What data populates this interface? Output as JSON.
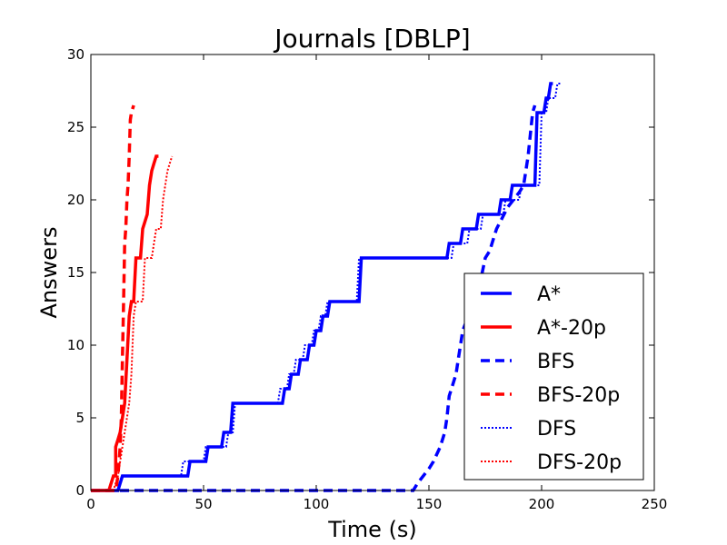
{
  "chart_data": {
    "type": "line",
    "title": "Journals [DBLP]",
    "xlabel": "Time (s)",
    "ylabel": "Answers",
    "xlim": [
      0,
      250
    ],
    "ylim": [
      0,
      30
    ],
    "xticks": [
      0,
      50,
      100,
      150,
      200,
      250
    ],
    "yticks": [
      0,
      5,
      10,
      15,
      20,
      25,
      30
    ],
    "xtick_labels": [
      "0",
      "50",
      "100",
      "150",
      "200",
      "250"
    ],
    "ytick_labels": [
      "0",
      "5",
      "10",
      "15",
      "20",
      "25",
      "30"
    ],
    "grid": false,
    "legend_position": "lower-right",
    "series": [
      {
        "name": "A*",
        "color": "#0000ff",
        "style": "solid",
        "x": [
          0,
          10,
          12,
          14,
          43,
          44,
          51,
          52,
          58,
          59,
          62,
          63,
          85,
          86,
          88,
          89,
          92,
          93,
          96,
          97,
          99,
          100,
          102,
          103,
          105,
          106,
          108,
          109,
          119,
          120,
          158,
          159,
          164,
          165,
          171,
          172,
          181,
          182,
          186,
          187,
          197,
          198,
          201,
          202,
          203,
          204,
          205
        ],
        "y": [
          0,
          0,
          0,
          1,
          1,
          2,
          2,
          3,
          3,
          4,
          4,
          6,
          6,
          7,
          7,
          8,
          8,
          9,
          9,
          10,
          10,
          11,
          11,
          12,
          12,
          13,
          13,
          13,
          13,
          16,
          16,
          17,
          17,
          18,
          18,
          19,
          19,
          20,
          20,
          21,
          21,
          26,
          26,
          27,
          27,
          28,
          28
        ]
      },
      {
        "name": "A*-20p",
        "color": "#ff0000",
        "style": "solid",
        "x": [
          0,
          8,
          9,
          10,
          11,
          11,
          12,
          13,
          14,
          15,
          16,
          17,
          18,
          19,
          20,
          21,
          22,
          23,
          24,
          25,
          26,
          27,
          28,
          29,
          30
        ],
        "y": [
          0,
          0,
          0.5,
          1,
          1,
          3,
          3.5,
          4,
          5,
          6,
          9,
          12,
          13,
          13,
          16,
          16,
          16,
          18,
          18.5,
          19,
          21,
          22,
          22.5,
          23,
          23
        ]
      },
      {
        "name": "BFS",
        "color": "#0000ff",
        "style": "dashed",
        "x": [
          0,
          143,
          145,
          150,
          152,
          155,
          157,
          158,
          159,
          160,
          162,
          163,
          165,
          170,
          173,
          175,
          177,
          178,
          180,
          185,
          190,
          192,
          194,
          196,
          197
        ],
        "y": [
          0,
          0,
          0.5,
          1.5,
          2,
          3,
          4,
          5,
          6.5,
          7,
          8,
          9,
          11,
          13,
          14.5,
          16,
          16.5,
          17,
          18,
          19.5,
          20.5,
          21,
          23,
          26,
          26.5
        ]
      },
      {
        "name": "BFS-20p",
        "color": "#ff0000",
        "style": "dashed",
        "x": [
          0,
          11,
          12,
          13,
          13.5,
          14,
          14.5,
          15,
          15.5,
          16,
          16.5,
          17,
          17.5,
          18,
          19
        ],
        "y": [
          0,
          0,
          1,
          3,
          5,
          9,
          13,
          17,
          18,
          20,
          21,
          23,
          25.5,
          26,
          26.5
        ]
      },
      {
        "name": "DFS",
        "color": "#0000ff",
        "style": "dotted",
        "x": [
          0,
          12,
          14,
          40,
          41,
          50,
          51,
          55,
          56,
          60,
          61,
          63,
          64,
          83,
          84,
          87,
          88,
          90,
          91,
          94,
          95,
          98,
          99,
          101,
          102,
          104,
          105,
          107,
          108,
          118,
          119,
          160,
          161,
          167,
          168,
          173,
          174,
          183,
          184,
          190,
          191,
          199,
          200,
          202,
          203,
          206,
          207,
          208,
          209
        ],
        "y": [
          0,
          0,
          1,
          1,
          2,
          2,
          3,
          3,
          3,
          3,
          4,
          4,
          6,
          6,
          7,
          7,
          8,
          8,
          9,
          9,
          10,
          10,
          11,
          11,
          12,
          12,
          13,
          13,
          13,
          13,
          16,
          16,
          17,
          17,
          18,
          18,
          19,
          19,
          20,
          20,
          21,
          21,
          26,
          26,
          27,
          27,
          28,
          28,
          28
        ]
      },
      {
        "name": "DFS-20p",
        "color": "#ff0000",
        "style": "dotted",
        "x": [
          0,
          10,
          11,
          12,
          13,
          14,
          15,
          16,
          17,
          18,
          19,
          20,
          21,
          23,
          24,
          26,
          27,
          28,
          29,
          30,
          31,
          32,
          34,
          36
        ],
        "y": [
          0,
          0,
          0.5,
          1,
          2,
          3,
          4,
          5,
          6,
          8,
          12,
          13,
          13,
          13,
          16,
          16,
          16,
          17,
          18,
          18,
          18,
          20,
          22,
          23
        ]
      }
    ]
  }
}
